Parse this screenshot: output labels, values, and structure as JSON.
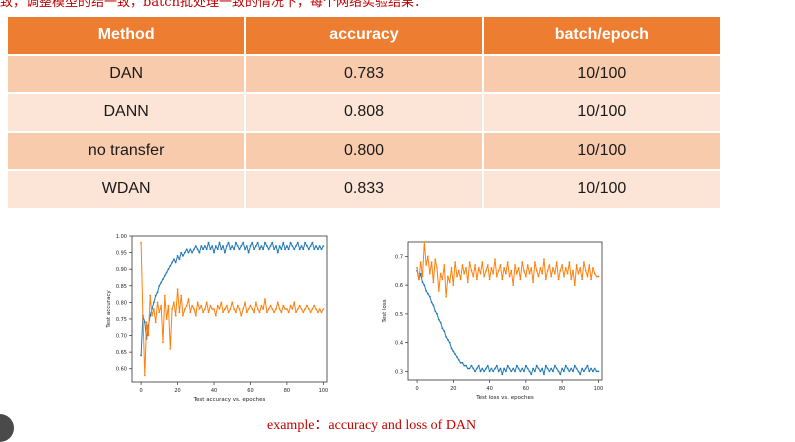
{
  "header_text": "致，调整模型的结一致，batch批处理一致的情况下，每个网络实验结果：",
  "table": {
    "headers": [
      "Method",
      "accuracy",
      "batch/epoch"
    ],
    "rows": [
      [
        "DAN",
        "0.783",
        "10/100"
      ],
      [
        "DANN",
        "0.808",
        "10/100"
      ],
      [
        "no transfer",
        "0.800",
        "10/100"
      ],
      [
        "WDAN",
        "0.833",
        "10/100"
      ]
    ]
  },
  "caption": "example：accuracy and loss of DAN",
  "colors": {
    "header": "#ed7d31",
    "row_dark": "#f8cbad",
    "row_light": "#fce4d6",
    "series_blue": "#1f77b4",
    "series_orange": "#ff7f0e",
    "caption": "#c00000"
  },
  "chart_data": [
    {
      "type": "line",
      "xlabel": "Test accuracy vs. epoches",
      "ylabel": "Test accuracy",
      "xlim": [
        -5,
        102
      ],
      "ylim": [
        0.56,
        1.0
      ],
      "xticks": [
        0,
        20,
        40,
        60,
        80,
        100
      ],
      "yticks": [
        0.6,
        0.65,
        0.7,
        0.75,
        0.8,
        0.85,
        0.9,
        0.95,
        1.0
      ],
      "ytick_labels": [
        "0.60",
        "0.65",
        "0.70",
        "0.75",
        "0.80",
        "0.85",
        "0.90",
        "0.95",
        "1.00"
      ],
      "series": [
        {
          "color": "#1f77b4",
          "values": [
            0.64,
            0.76,
            0.74,
            0.69,
            0.73,
            0.76,
            0.78,
            0.8,
            0.82,
            0.83,
            0.85,
            0.86,
            0.87,
            0.88,
            0.89,
            0.9,
            0.91,
            0.92,
            0.93,
            0.92,
            0.94,
            0.93,
            0.95,
            0.94,
            0.95,
            0.96,
            0.95,
            0.96,
            0.95,
            0.96,
            0.97,
            0.96,
            0.95,
            0.97,
            0.96,
            0.97,
            0.96,
            0.98,
            0.96,
            0.97,
            0.95,
            0.97,
            0.96,
            0.98,
            0.96,
            0.97,
            0.95,
            0.97,
            0.98,
            0.96,
            0.97,
            0.96,
            0.98,
            0.97,
            0.96,
            0.97,
            0.98,
            0.96,
            0.97,
            0.95,
            0.97,
            0.98,
            0.96,
            0.97,
            0.98,
            0.96,
            0.97,
            0.96,
            0.98,
            0.97,
            0.96,
            0.97,
            0.98,
            0.96,
            0.97,
            0.95,
            0.97,
            0.96,
            0.98,
            0.96,
            0.97,
            0.96,
            0.98,
            0.97,
            0.96,
            0.97,
            0.98,
            0.96,
            0.97,
            0.96,
            0.98,
            0.97,
            0.96,
            0.97,
            0.98,
            0.96,
            0.97,
            0.96,
            0.97,
            0.96,
            0.97
          ]
        },
        {
          "color": "#ff7f0e",
          "values": [
            0.98,
            0.76,
            0.58,
            0.74,
            0.7,
            0.82,
            0.76,
            0.78,
            0.74,
            0.8,
            0.77,
            0.79,
            0.68,
            0.82,
            0.75,
            0.79,
            0.66,
            0.78,
            0.8,
            0.76,
            0.84,
            0.77,
            0.82,
            0.76,
            0.78,
            0.79,
            0.81,
            0.77,
            0.79,
            0.78,
            0.76,
            0.8,
            0.78,
            0.79,
            0.77,
            0.78,
            0.8,
            0.77,
            0.79,
            0.78,
            0.78,
            0.76,
            0.79,
            0.78,
            0.8,
            0.77,
            0.78,
            0.79,
            0.77,
            0.78,
            0.8,
            0.78,
            0.77,
            0.79,
            0.78,
            0.76,
            0.78,
            0.8,
            0.77,
            0.78,
            0.79,
            0.78,
            0.77,
            0.8,
            0.78,
            0.77,
            0.79,
            0.78,
            0.81,
            0.77,
            0.78,
            0.79,
            0.78,
            0.77,
            0.78,
            0.8,
            0.78,
            0.77,
            0.79,
            0.78,
            0.78,
            0.77,
            0.79,
            0.78,
            0.8,
            0.77,
            0.78,
            0.79,
            0.78,
            0.77,
            0.78,
            0.79,
            0.78,
            0.77,
            0.78,
            0.79,
            0.78,
            0.77,
            0.78,
            0.77,
            0.78
          ]
        }
      ]
    },
    {
      "type": "line",
      "xlabel": "Test loss vs. epoches",
      "ylabel": "Test loss",
      "xlim": [
        -5,
        102
      ],
      "ylim": [
        0.27,
        0.75
      ],
      "xticks": [
        0,
        20,
        40,
        60,
        80,
        100
      ],
      "yticks": [
        0.3,
        0.4,
        0.5,
        0.6,
        0.7
      ],
      "ytick_labels": [
        "0.3",
        "0.4",
        "0.5",
        "0.6",
        "0.7"
      ],
      "series": [
        {
          "color": "#1f77b4",
          "values": [
            0.65,
            0.62,
            0.64,
            0.61,
            0.6,
            0.58,
            0.57,
            0.56,
            0.54,
            0.53,
            0.51,
            0.5,
            0.48,
            0.47,
            0.45,
            0.44,
            0.42,
            0.41,
            0.4,
            0.38,
            0.37,
            0.36,
            0.35,
            0.34,
            0.33,
            0.33,
            0.32,
            0.32,
            0.31,
            0.31,
            0.32,
            0.31,
            0.3,
            0.31,
            0.32,
            0.3,
            0.31,
            0.3,
            0.31,
            0.32,
            0.3,
            0.31,
            0.3,
            0.31,
            0.32,
            0.3,
            0.31,
            0.29,
            0.31,
            0.3,
            0.32,
            0.31,
            0.3,
            0.31,
            0.3,
            0.32,
            0.31,
            0.3,
            0.31,
            0.3,
            0.32,
            0.31,
            0.3,
            0.29,
            0.31,
            0.3,
            0.32,
            0.31,
            0.3,
            0.31,
            0.29,
            0.32,
            0.31,
            0.3,
            0.31,
            0.3,
            0.32,
            0.31,
            0.3,
            0.29,
            0.31,
            0.3,
            0.32,
            0.31,
            0.3,
            0.31,
            0.3,
            0.32,
            0.31,
            0.3,
            0.29,
            0.31,
            0.3,
            0.31,
            0.32,
            0.3,
            0.31,
            0.3,
            0.31,
            0.3,
            0.3
          ]
        },
        {
          "color": "#ff7f0e",
          "values": [
            0.66,
            0.62,
            0.68,
            0.63,
            0.75,
            0.67,
            0.7,
            0.64,
            0.68,
            0.61,
            0.69,
            0.66,
            0.58,
            0.64,
            0.62,
            0.67,
            0.56,
            0.63,
            0.61,
            0.66,
            0.6,
            0.68,
            0.63,
            0.65,
            0.62,
            0.67,
            0.64,
            0.66,
            0.61,
            0.68,
            0.65,
            0.63,
            0.67,
            0.62,
            0.66,
            0.64,
            0.68,
            0.63,
            0.65,
            0.67,
            0.62,
            0.66,
            0.64,
            0.69,
            0.63,
            0.65,
            0.67,
            0.62,
            0.66,
            0.64,
            0.68,
            0.63,
            0.65,
            0.6,
            0.67,
            0.64,
            0.66,
            0.62,
            0.68,
            0.65,
            0.63,
            0.67,
            0.64,
            0.66,
            0.61,
            0.68,
            0.65,
            0.63,
            0.66,
            0.64,
            0.69,
            0.62,
            0.65,
            0.67,
            0.63,
            0.66,
            0.64,
            0.68,
            0.62,
            0.65,
            0.67,
            0.63,
            0.66,
            0.64,
            0.68,
            0.62,
            0.65,
            0.6,
            0.67,
            0.64,
            0.66,
            0.62,
            0.68,
            0.65,
            0.63,
            0.67,
            0.62,
            0.66,
            0.64,
            0.63,
            0.63
          ]
        }
      ]
    }
  ]
}
